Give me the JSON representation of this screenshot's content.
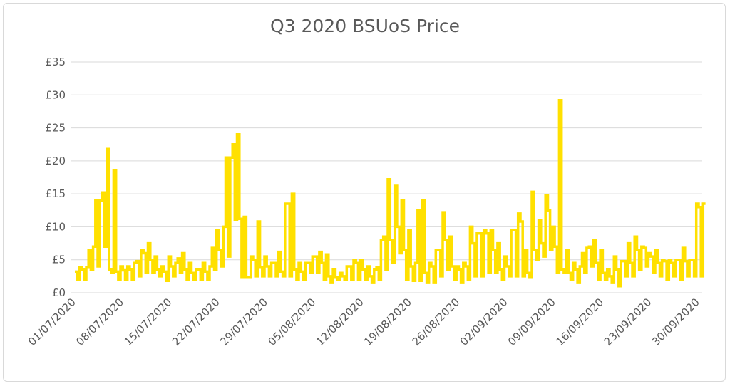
{
  "chart_data": {
    "type": "line",
    "title": "Q3 2020 BSUoS Price",
    "xlabel": "",
    "ylabel": "",
    "ylim": [
      0,
      35
    ],
    "yticks": [
      "£0",
      "£5",
      "£10",
      "£15",
      "£20",
      "£25",
      "£30",
      "£35"
    ],
    "ytick_values": [
      0,
      5,
      10,
      15,
      20,
      25,
      30,
      35
    ],
    "x_tick_labels": [
      "01/07/2020",
      "08/07/2020",
      "15/07/2020",
      "22/07/2020",
      "29/07/2020",
      "05/08/2020",
      "12/08/2020",
      "19/08/2020",
      "26/08/2020",
      "02/09/2020",
      "09/09/2020",
      "16/09/2020",
      "23/09/2020",
      "30/09/2020"
    ],
    "grid": true,
    "legend": "none",
    "colors": {
      "series": "#ffe000",
      "grid": "#d9d9d9",
      "text": "#595959"
    },
    "series": [
      {
        "x": [
          "01/07/2020",
          "02/07/2020",
          "03/07/2020",
          "04/07/2020",
          "05/07/2020",
          "06/07/2020",
          "07/07/2020",
          "08/07/2020",
          "09/07/2020",
          "10/07/2020",
          "11/07/2020",
          "12/07/2020",
          "13/07/2020",
          "14/07/2020",
          "15/07/2020",
          "16/07/2020",
          "17/07/2020",
          "18/07/2020",
          "19/07/2020",
          "20/07/2020",
          "21/07/2020",
          "22/07/2020",
          "23/07/2020",
          "24/07/2020",
          "25/07/2020",
          "26/07/2020",
          "27/07/2020",
          "28/07/2020",
          "29/07/2020",
          "30/07/2020",
          "31/07/2020",
          "01/08/2020",
          "02/08/2020",
          "03/08/2020",
          "04/08/2020",
          "05/08/2020",
          "06/08/2020",
          "07/08/2020",
          "08/08/2020",
          "09/08/2020",
          "10/08/2020",
          "11/08/2020",
          "12/08/2020",
          "13/08/2020",
          "14/08/2020",
          "15/08/2020",
          "16/08/2020",
          "17/08/2020",
          "18/08/2020",
          "19/08/2020",
          "20/08/2020",
          "21/08/2020",
          "22/08/2020",
          "23/08/2020",
          "24/08/2020",
          "25/08/2020",
          "26/08/2020",
          "27/08/2020",
          "28/08/2020",
          "29/08/2020",
          "30/08/2020",
          "31/08/2020",
          "01/09/2020",
          "02/09/2020",
          "03/09/2020",
          "04/09/2020",
          "05/09/2020",
          "06/09/2020",
          "07/09/2020",
          "08/09/2020",
          "09/09/2020",
          "10/09/2020",
          "11/09/2020",
          "12/09/2020",
          "13/09/2020",
          "14/09/2020",
          "15/09/2020",
          "16/09/2020",
          "17/09/2020",
          "18/09/2020",
          "19/09/2020",
          "20/09/2020",
          "21/09/2020",
          "22/09/2020",
          "23/09/2020",
          "24/09/2020",
          "25/09/2020",
          "26/09/2020",
          "27/09/2020",
          "28/09/2020",
          "29/09/2020",
          "30/09/2020"
        ],
        "values": [
          3.2,
          3.5,
          6.5,
          14.0,
          15.2,
          3.5,
          3.2,
          3.4,
          3.5,
          4.8,
          6.0,
          5.0,
          3.5,
          3.2,
          4.0,
          5.2,
          3.5,
          3.0,
          3.5,
          3.2,
          6.8,
          6.5,
          20.5,
          22.5,
          11.2,
          2.3,
          5.0,
          3.8,
          4.0,
          4.5,
          3.2,
          13.5,
          3.5,
          3.2,
          4.5,
          5.5,
          4.5,
          2.5,
          2.3,
          2.5,
          4.0,
          4.5,
          3.5,
          2.5,
          3.8,
          8.5,
          8.0,
          10.0,
          6.5,
          4.0,
          12.5,
          3.0,
          4.0,
          6.5,
          8.0,
          4.0,
          3.5,
          4.0,
          7.5,
          9.0,
          9.0,
          6.5,
          3.5,
          4.0,
          9.5,
          10.8,
          3.0,
          6.5,
          7.5,
          12.5,
          7.0,
          3.5,
          3.0,
          3.5,
          6.0,
          7.0,
          4.5,
          3.0,
          2.5,
          3.5,
          4.8,
          4.5,
          6.5,
          6.8,
          5.5,
          4.5,
          4.8,
          4.5,
          5.0,
          4.8,
          5.0,
          13.0
        ],
        "mins": [
          2.0,
          2.0,
          3.5,
          4.0,
          7.0,
          3.0,
          2.0,
          2.0,
          2.0,
          2.5,
          3.0,
          3.0,
          2.5,
          1.8,
          2.5,
          3.0,
          2.0,
          2.0,
          2.0,
          2.0,
          3.5,
          4.0,
          5.5,
          11.0,
          2.3,
          2.3,
          2.5,
          2.5,
          2.5,
          2.5,
          2.5,
          2.5,
          2.0,
          2.0,
          3.0,
          3.0,
          2.0,
          1.5,
          2.0,
          2.0,
          2.0,
          2.0,
          2.0,
          1.5,
          2.0,
          3.5,
          4.5,
          6.0,
          2.0,
          1.8,
          1.8,
          1.5,
          1.5,
          2.5,
          3.5,
          2.0,
          1.5,
          2.0,
          2.5,
          2.5,
          3.0,
          3.0,
          2.0,
          2.5,
          2.5,
          2.5,
          2.3,
          5.0,
          5.5,
          6.5,
          3.0,
          3.0,
          2.0,
          1.5,
          3.0,
          4.0,
          2.0,
          2.0,
          1.5,
          1.0,
          2.5,
          2.5,
          3.5,
          4.0,
          3.0,
          2.5,
          2.0,
          2.5,
          2.0,
          2.5,
          2.5,
          2.5
        ],
        "maxs": [
          3.8,
          3.8,
          7.0,
          14.0,
          21.8,
          18.5,
          4.0,
          4.0,
          4.5,
          6.5,
          7.5,
          5.5,
          4.0,
          5.5,
          4.5,
          6.0,
          4.5,
          3.5,
          4.5,
          4.0,
          9.5,
          10.0,
          20.5,
          24.0,
          11.5,
          5.5,
          10.8,
          5.5,
          4.5,
          6.2,
          13.5,
          15.0,
          4.5,
          4.5,
          5.5,
          6.2,
          5.8,
          3.5,
          3.0,
          4.0,
          5.0,
          5.0,
          4.0,
          3.5,
          8.0,
          17.2,
          16.2,
          14.0,
          9.5,
          4.5,
          14.0,
          4.5,
          6.5,
          12.2,
          8.5,
          4.0,
          4.5,
          10.0,
          9.0,
          9.5,
          9.5,
          7.5,
          5.5,
          9.5,
          12.0,
          6.5,
          15.3,
          11.0,
          14.8,
          10.0,
          29.2,
          6.5,
          4.5,
          4.0,
          6.8,
          8.0,
          6.5,
          3.5,
          5.5,
          4.8,
          7.5,
          8.5,
          7.0,
          6.0,
          6.5,
          5.0,
          5.0,
          5.0,
          6.8,
          5.0,
          13.5,
          13.5
        ]
      }
    ]
  }
}
